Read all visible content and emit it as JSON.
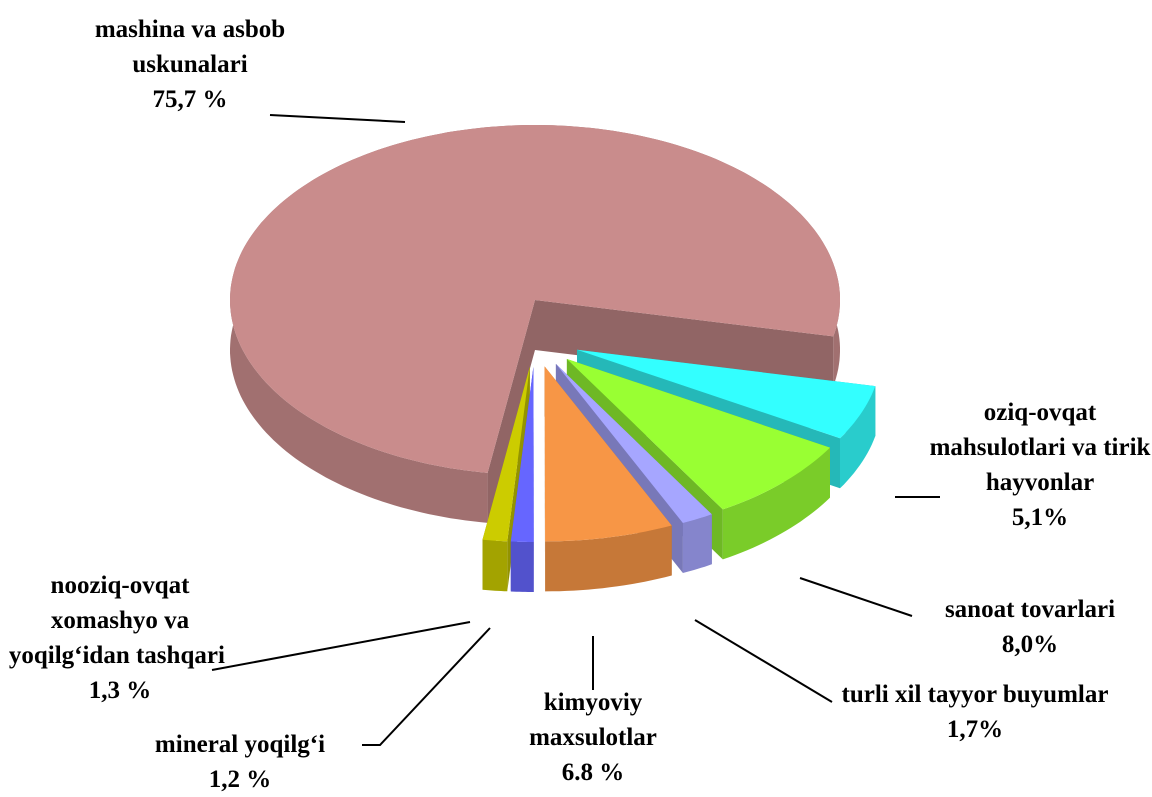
{
  "chart_data": {
    "type": "pie",
    "categories": [
      "oziq-ovqat mahsulotlari va tirik hayvonlar",
      "sanoat tovarlari",
      "turli xil tayyor buyumlar",
      "kimyoviy maxsulotlar",
      "mineral yoqilg‘i",
      "nooziq-ovqat xomashyo va yoqilg‘idan tashqari",
      "mashina va asbob uskunalari"
    ],
    "values": [
      5.1,
      8.0,
      1.7,
      6.8,
      1.2,
      1.3,
      75.7
    ],
    "value_labels": [
      "5,1%",
      "8,0%",
      "1,7%",
      "6.8 %",
      "1,2 %",
      "1,3 %",
      "75,7 %"
    ],
    "colors": [
      "#33ffff",
      "#99ff33",
      "#a6a6ff",
      "#f79646",
      "#6666ff",
      "#cccc00",
      "#c98c8c"
    ]
  }
}
